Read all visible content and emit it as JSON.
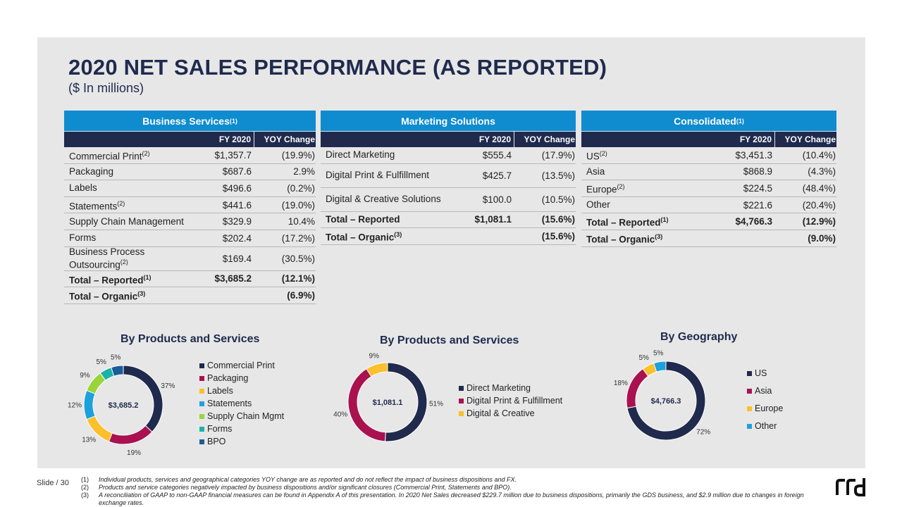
{
  "title": "2020 NET SALES PERFORMANCE (AS REPORTED)",
  "subtitle": "($ In millions)",
  "colors": {
    "navy": "#1f2a4d",
    "blue_header": "#0e8ccf",
    "magenta": "#a9124f",
    "yellow": "#fbc02d",
    "cyan": "#1da1dc",
    "green": "#9bd43a",
    "teal": "#1ab3a6",
    "dark_blue": "#1a5d9a"
  },
  "tables": {
    "business_services": {
      "header": "Business Services",
      "header_sup": "(1)",
      "col_fy": "FY 2020",
      "col_yoy": "YOY Change",
      "rows": [
        {
          "label": "Commercial Print",
          "sup": "(2)",
          "fy": "$1,357.7",
          "yoy": "(19.9%)"
        },
        {
          "label": "Packaging",
          "sup": "",
          "fy": "$687.6",
          "yoy": "2.9%"
        },
        {
          "label": "Labels",
          "sup": "",
          "fy": "$496.6",
          "yoy": "(0.2%)"
        },
        {
          "label": "Statements",
          "sup": "(2)",
          "fy": "$441.6",
          "yoy": "(19.0%)"
        },
        {
          "label": "Supply Chain Management",
          "sup": "",
          "fy": "$329.9",
          "yoy": "10.4%"
        },
        {
          "label": "Forms",
          "sup": "",
          "fy": "$202.4",
          "yoy": "(17.2%)"
        },
        {
          "label": "Business Process Outsourcing",
          "sup": "(2)",
          "fy": "$169.4",
          "yoy": "(30.5%)"
        },
        {
          "label": "Total – Reported",
          "sup": "(1)",
          "fy": "$3,685.2",
          "yoy": "(12.1%)"
        },
        {
          "label": "Total – Organic",
          "sup": "(3)",
          "fy": "",
          "yoy": "(6.9%)"
        }
      ]
    },
    "marketing_solutions": {
      "header": "Marketing Solutions",
      "header_sup": "",
      "col_fy": "FY 2020",
      "col_yoy": "YOY Change",
      "rows": [
        {
          "label": "Direct Marketing",
          "sup": "",
          "fy": "$555.4",
          "yoy": "(17.9%)"
        },
        {
          "label": "Digital Print & Fulfillment",
          "sup": "",
          "fy": "$425.7",
          "yoy": "(13.5%)"
        },
        {
          "label": "Digital & Creative Solutions",
          "sup": "",
          "fy": "$100.0",
          "yoy": "(10.5%)"
        },
        {
          "label": "Total – Reported",
          "sup": "",
          "fy": "$1,081.1",
          "yoy": "(15.6%)"
        },
        {
          "label": "Total – Organic",
          "sup": "(3)",
          "fy": "",
          "yoy": "(15.6%)"
        }
      ]
    },
    "consolidated": {
      "header": "Consolidated",
      "header_sup": "(1)",
      "col_fy": "FY 2020",
      "col_yoy": "YOY Change",
      "rows": [
        {
          "label": "US",
          "sup": "(2)",
          "fy": "$3,451.3",
          "yoy": "(10.4%)"
        },
        {
          "label": "Asia",
          "sup": "",
          "fy": "$868.9",
          "yoy": "(4.3%)"
        },
        {
          "label": "Europe",
          "sup": "(2)",
          "fy": "$224.5",
          "yoy": "(48.4%)"
        },
        {
          "label": "Other",
          "sup": "",
          "fy": "$221.6",
          "yoy": "(20.4%)"
        },
        {
          "label": "Total – Reported",
          "sup": "(1)",
          "fy": "$4,766.3",
          "yoy": "(12.9%)"
        },
        {
          "label": "Total – Organic",
          "sup": "(3)",
          "fy": "",
          "yoy": "(9.0%)"
        }
      ]
    }
  },
  "chart_data": [
    {
      "type": "pie",
      "title": "By Products and Services",
      "center_label": "$3,685.2",
      "categories": [
        "Commercial Print",
        "Packaging",
        "Labels",
        "Statements",
        "Supply Chain Mgmt",
        "Forms",
        "BPO"
      ],
      "values": [
        37,
        19,
        13,
        12,
        9,
        5,
        5
      ],
      "labels": [
        "37%",
        "19%",
        "13%",
        "12%",
        "9%",
        "5%",
        "5%"
      ],
      "colors": [
        "#1f2a4d",
        "#a9124f",
        "#fbc02d",
        "#1da1dc",
        "#9bd43a",
        "#1ab3a6",
        "#1a5d9a"
      ]
    },
    {
      "type": "pie",
      "title": "By Products and Services",
      "center_label": "$1,081.1",
      "categories": [
        "Direct Marketing",
        "Digital Print & Fulfillment",
        "Digital & Creative"
      ],
      "values": [
        51,
        40,
        9
      ],
      "labels": [
        "51%",
        "40%",
        "9%"
      ],
      "colors": [
        "#1f2a4d",
        "#a9124f",
        "#fbc02d"
      ]
    },
    {
      "type": "pie",
      "title": "By Geography",
      "center_label": "$4,766.3",
      "categories": [
        "US",
        "Asia",
        "Europe",
        "Other"
      ],
      "values": [
        72,
        18,
        5,
        5
      ],
      "labels": [
        "72%",
        "18%",
        "5%",
        "5%"
      ],
      "colors": [
        "#1f2a4d",
        "#a9124f",
        "#fbc02d",
        "#1da1dc"
      ]
    }
  ],
  "footer": {
    "slide": "Slide / 30",
    "notes": [
      {
        "n": "(1)",
        "text": "Individual products, services and geographical categories YOY change are as reported and do not reflect the impact of business dispositions and FX."
      },
      {
        "n": "(2)",
        "text": "Products and service categories negatively impacted by business dispositions and/or significant closures (Commercial Print, Statements and BPO)."
      },
      {
        "n": "(3)",
        "text": "A reconciliation of GAAP to non-GAAP financial measures can be found in Appendix A of this presentation. In 2020 Net Sales decreased $229.7 million due to business dispositions, primarily the GDS business, and $2.9 million due to changes in foreign exchange rates."
      }
    ],
    "logo_text": "rrd"
  }
}
